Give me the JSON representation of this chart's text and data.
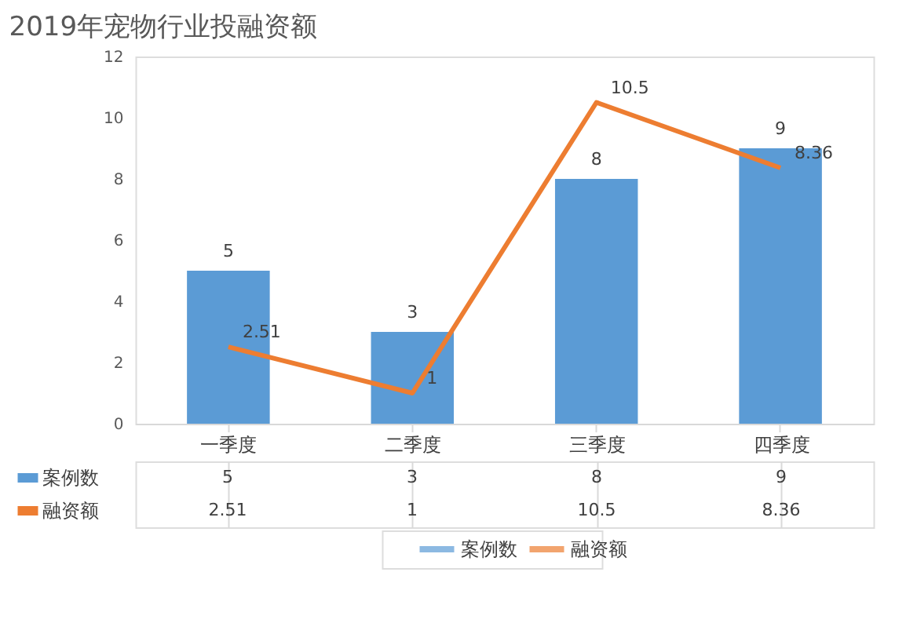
{
  "chart_data": {
    "type": "bar",
    "title": "2019年宠物行业投融资额",
    "categories": [
      "一季度",
      "二季度",
      "三季度",
      "四季度"
    ],
    "series": [
      {
        "name": "案例数",
        "color": "#5b9bd5",
        "values": [
          5,
          3,
          8,
          9
        ],
        "value_labels": [
          "5",
          "3",
          "8",
          "9"
        ]
      },
      {
        "name": "融资额",
        "type": "line",
        "color": "#ed7d31",
        "values": [
          2.51,
          1,
          10.5,
          8.36
        ],
        "value_labels": [
          "2.51",
          "1",
          "10.5",
          "8.36"
        ]
      }
    ],
    "ylim": [
      0,
      12
    ],
    "yticks": [
      0,
      2,
      4,
      6,
      8,
      10,
      12
    ],
    "grid": false,
    "legend": "bottom",
    "data_labels": true,
    "marker": "none",
    "line_style": "solid"
  }
}
